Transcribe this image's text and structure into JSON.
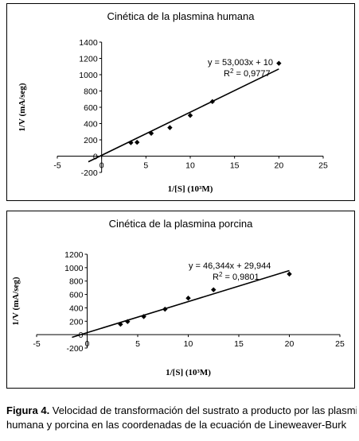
{
  "chart_data": [
    {
      "type": "scatter",
      "title": "Cinética de la plasmina humana",
      "xlabel": "1/[S] (10³M)",
      "ylabel": "1/V (mA/seg)",
      "xlim": [
        -5,
        25
      ],
      "ylim": [
        -200,
        1400
      ],
      "xticks": [
        "-5",
        "0",
        "5",
        "10",
        "15",
        "20",
        "25"
      ],
      "yticks": [
        "-200",
        "0",
        "200",
        "400",
        "600",
        "800",
        "1000",
        "1200",
        "1400"
      ],
      "points": [
        {
          "x": 3.3,
          "y": 165
        },
        {
          "x": 4.0,
          "y": 170
        },
        {
          "x": 5.6,
          "y": 280
        },
        {
          "x": 7.7,
          "y": 350
        },
        {
          "x": 10.0,
          "y": 500
        },
        {
          "x": 12.5,
          "y": 670
        },
        {
          "x": 20.0,
          "y": 1140
        }
      ],
      "trendline": {
        "slope": 53.003,
        "intercept": 10,
        "x_range": [
          -1.5,
          20
        ]
      },
      "equation": "y = 53,003x + 10",
      "r2_label": "R",
      "r2_exp": "2",
      "r2_value": " = 0,9777"
    },
    {
      "type": "scatter",
      "title": "Cinética de la plasmina porcina",
      "xlabel": "1/[S] (10³M)",
      "ylabel": "1/V (mA/seg)",
      "xlim": [
        -5,
        25
      ],
      "ylim": [
        -200,
        1200
      ],
      "xticks": [
        "-5",
        "0",
        "5",
        "10",
        "15",
        "20",
        "25"
      ],
      "yticks": [
        "-200",
        "0",
        "200",
        "400",
        "600",
        "800",
        "1000",
        "1200"
      ],
      "points": [
        {
          "x": 3.3,
          "y": 155
        },
        {
          "x": 4.0,
          "y": 195
        },
        {
          "x": 5.6,
          "y": 270
        },
        {
          "x": 7.7,
          "y": 380
        },
        {
          "x": 10.0,
          "y": 545
        },
        {
          "x": 12.5,
          "y": 670
        },
        {
          "x": 20.0,
          "y": 905
        }
      ],
      "trendline": {
        "slope": 46.344,
        "intercept": 29.944,
        "x_range": [
          -1.5,
          20
        ]
      },
      "equation": "y = 46,344x + 29,944",
      "r2_label": "R",
      "r2_exp": "2",
      "r2_value": " = 0,9801"
    }
  ],
  "caption": {
    "label": "Figura 4.",
    "line1": " Velocidad de transformación del sustrato a producto por las plasminas",
    "line2": "humana y porcina en las coordenadas de la ecuación de Lineweaver-Burk"
  }
}
